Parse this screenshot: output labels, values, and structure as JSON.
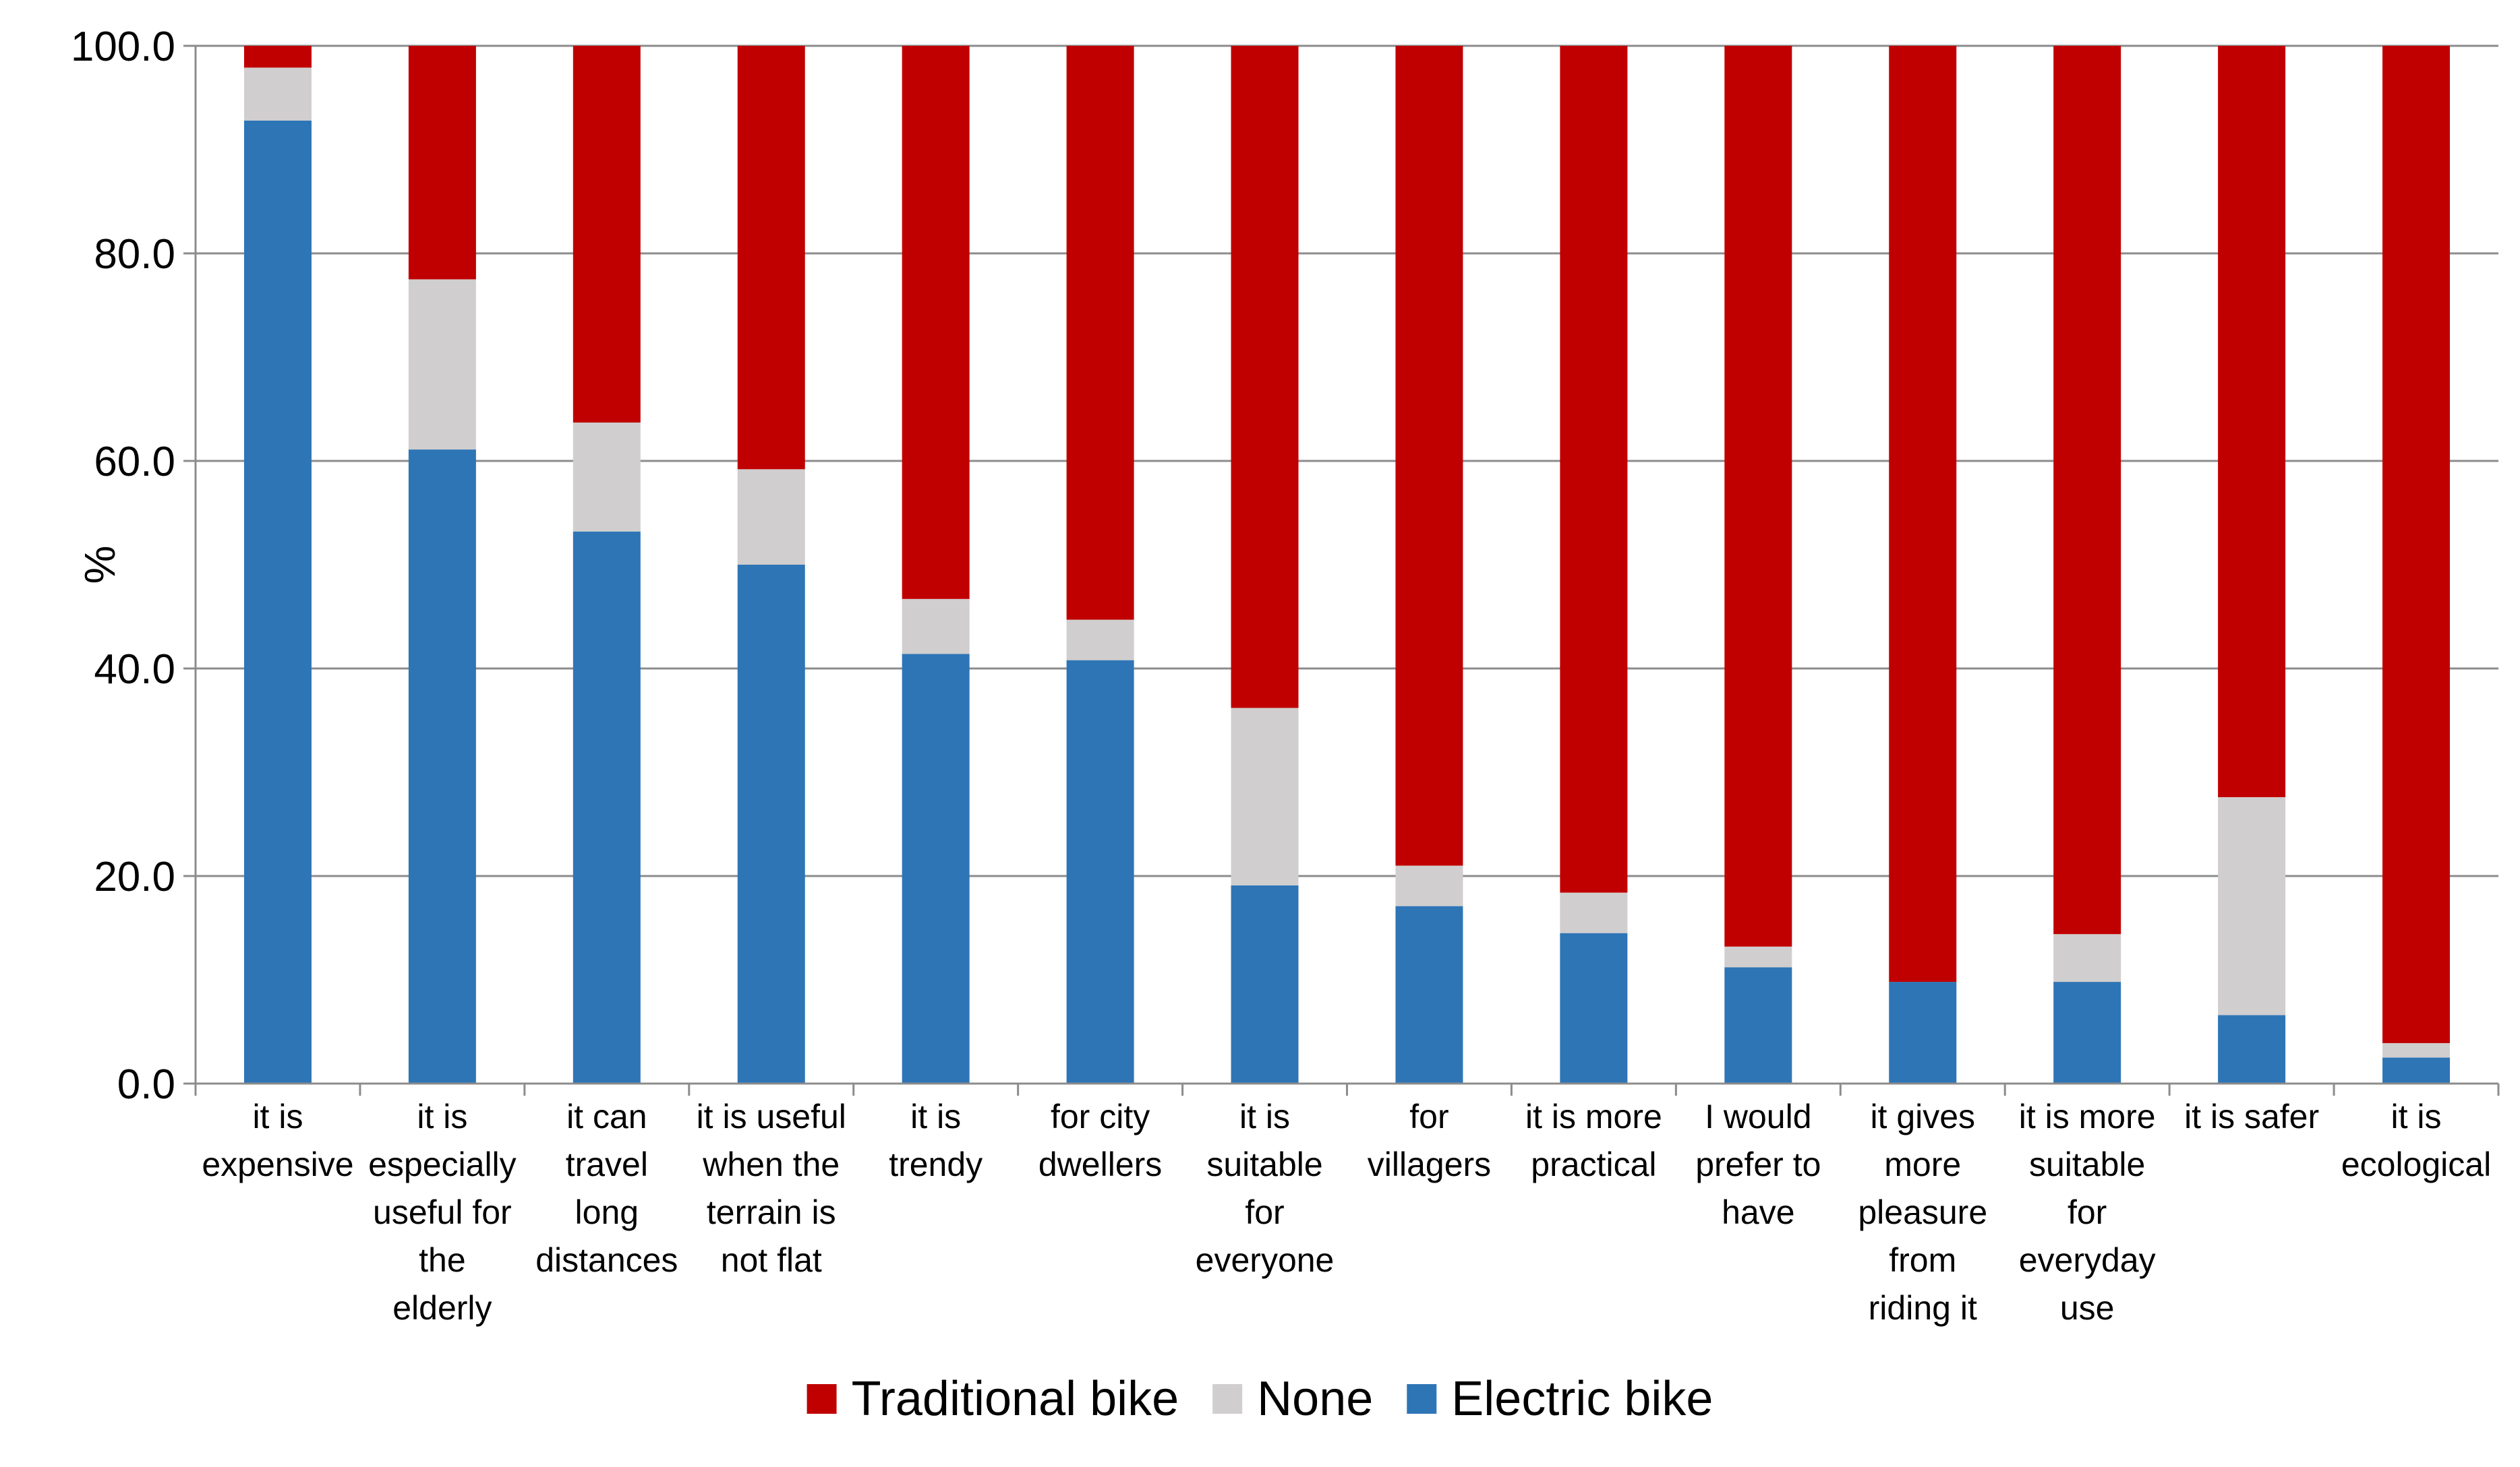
{
  "chart_data": {
    "type": "bar",
    "stacked": true,
    "title": "",
    "xlabel": "",
    "ylabel": "%",
    "ylim": [
      0,
      100
    ],
    "yticks": [
      "0.0",
      "20.0",
      "40.0",
      "60.0",
      "80.0",
      "100.0"
    ],
    "ytick_values": [
      0,
      20,
      40,
      60,
      80,
      100
    ],
    "grid": true,
    "legend_position": "bottom",
    "categories": [
      [
        "it is",
        "expensive"
      ],
      [
        "it is",
        "especially",
        "useful for",
        "the",
        "elderly"
      ],
      [
        "it can",
        "travel",
        "long",
        "distances"
      ],
      [
        "it is useful",
        "when the",
        "terrain is",
        "not flat"
      ],
      [
        "it is",
        "trendy"
      ],
      [
        "for city",
        "dwellers"
      ],
      [
        "it is",
        "suitable",
        "for",
        "everyone"
      ],
      [
        "for",
        "villagers"
      ],
      [
        "it is more",
        "practical"
      ],
      [
        "I would",
        "prefer to",
        "have"
      ],
      [
        "it gives",
        "more",
        "pleasure",
        "from",
        "riding it"
      ],
      [
        "it is more",
        "suitable",
        "for",
        "everyday",
        "use"
      ],
      [
        "it is safer"
      ],
      [
        "it is",
        "ecological"
      ]
    ],
    "series": [
      {
        "name": "Electric bike",
        "color": "#2E75B6",
        "values": [
          92.8,
          61.1,
          53.2,
          50.0,
          41.4,
          40.8,
          19.1,
          17.1,
          14.5,
          11.2,
          9.8,
          9.8,
          6.6,
          2.5
        ]
      },
      {
        "name": "None",
        "color": "#D0CECE",
        "values": [
          5.1,
          16.4,
          10.5,
          9.2,
          5.3,
          3.9,
          17.1,
          3.9,
          3.9,
          2.0,
          0.0,
          4.6,
          21.0,
          1.4
        ]
      },
      {
        "name": "Traditional bike",
        "color": "#C00000",
        "values": [
          2.1,
          22.5,
          36.3,
          40.8,
          53.3,
          55.3,
          63.8,
          79.0,
          81.6,
          86.8,
          90.2,
          85.6,
          72.4,
          96.1
        ]
      }
    ],
    "legend_order": [
      "Traditional bike",
      "None",
      "Electric bike"
    ]
  }
}
